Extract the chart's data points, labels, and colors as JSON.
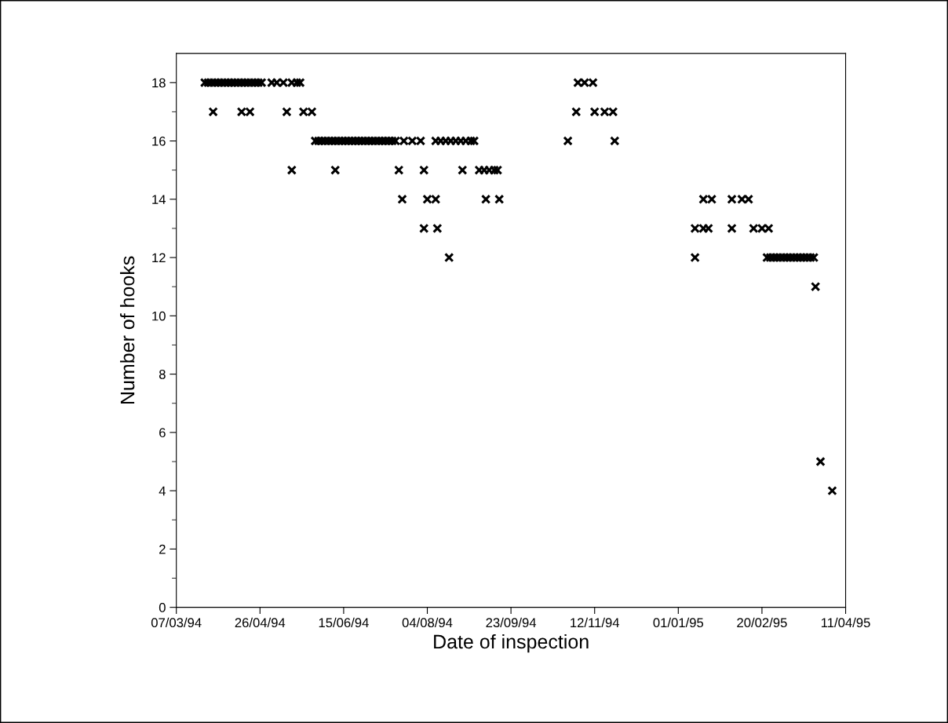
{
  "chart_data": {
    "type": "scatter",
    "xlabel": "Date of inspection",
    "ylabel": "Number of hooks",
    "xlim": [
      "1994-03-07",
      "1995-04-11"
    ],
    "ylim": [
      0,
      19
    ],
    "xticks": [
      {
        "value": "1994-03-07",
        "label": "07/03/94"
      },
      {
        "value": "1994-04-26",
        "label": "26/04/94"
      },
      {
        "value": "1994-06-15",
        "label": "15/06/94"
      },
      {
        "value": "1994-08-04",
        "label": "04/08/94"
      },
      {
        "value": "1994-09-23",
        "label": "23/09/94"
      },
      {
        "value": "1994-11-12",
        "label": "12/11/94"
      },
      {
        "value": "1995-01-01",
        "label": "01/01/95"
      },
      {
        "value": "1995-02-20",
        "label": "20/02/95"
      },
      {
        "value": "1995-04-11",
        "label": "11/04/95"
      }
    ],
    "yticks": [
      0,
      2,
      4,
      6,
      8,
      10,
      12,
      14,
      16,
      18
    ],
    "marker": "cross",
    "grid": false,
    "series": [
      {
        "color": "#000000",
        "x": [
          "1994-03-24",
          "1994-03-26",
          "1994-03-28",
          "1994-03-30",
          "1994-04-01",
          "1994-04-03",
          "1994-04-05",
          "1994-04-07",
          "1994-04-09",
          "1994-04-11",
          "1994-04-13",
          "1994-04-15",
          "1994-04-17",
          "1994-04-19",
          "1994-04-21",
          "1994-04-23",
          "1994-04-25",
          "1994-04-27",
          "1994-05-03",
          "1994-05-06",
          "1994-05-10",
          "1994-05-15",
          "1994-05-18",
          "1994-05-20",
          "1994-03-29",
          "1994-04-15",
          "1994-04-20",
          "1994-05-12",
          "1994-05-22",
          "1994-05-27",
          "1994-05-29",
          "1994-05-31",
          "1994-06-02",
          "1994-06-04",
          "1994-06-06",
          "1994-06-08",
          "1994-06-10",
          "1994-06-12",
          "1994-06-14",
          "1994-06-16",
          "1994-06-18",
          "1994-06-20",
          "1994-06-22",
          "1994-06-24",
          "1994-06-26",
          "1994-06-28",
          "1994-06-30",
          "1994-07-02",
          "1994-07-04",
          "1994-07-06",
          "1994-07-08",
          "1994-07-10",
          "1994-07-12",
          "1994-07-14",
          "1994-07-16",
          "1994-07-21",
          "1994-07-26",
          "1994-07-31",
          "1994-08-09",
          "1994-08-12",
          "1994-08-15",
          "1994-08-18",
          "1994-08-21",
          "1994-08-24",
          "1994-08-27",
          "1994-08-30",
          "1994-09-01",
          "1994-05-15",
          "1994-06-10",
          "1994-07-18",
          "1994-08-02",
          "1994-08-25",
          "1994-09-04",
          "1994-09-07",
          "1994-09-10",
          "1994-09-13",
          "1994-09-15",
          "1994-07-20",
          "1994-08-04",
          "1994-08-09",
          "1994-09-08",
          "1994-09-16",
          "1994-08-02",
          "1994-08-10",
          "1994-08-17",
          "1994-11-02",
          "1994-11-06",
          "1994-11-11",
          "1994-11-01",
          "1994-11-12",
          "1994-11-18",
          "1994-11-23",
          "1994-10-27",
          "1994-11-24",
          "1995-01-16",
          "1995-01-21",
          "1995-02-02",
          "1995-02-08",
          "1995-02-12",
          "1995-01-11",
          "1995-01-16",
          "1995-01-19",
          "1995-02-02",
          "1995-02-15",
          "1995-02-20",
          "1995-02-24",
          "1995-01-11",
          "1995-02-23",
          "1995-02-25",
          "1995-02-27",
          "1995-03-01",
          "1995-03-03",
          "1995-03-05",
          "1995-03-07",
          "1995-03-09",
          "1995-03-11",
          "1995-03-13",
          "1995-03-15",
          "1995-03-17",
          "1995-03-19",
          "1995-03-21",
          "1995-03-23",
          "1995-03-24",
          "1995-03-27",
          "1995-04-03"
        ],
        "values": [
          18,
          18,
          18,
          18,
          18,
          18,
          18,
          18,
          18,
          18,
          18,
          18,
          18,
          18,
          18,
          18,
          18,
          18,
          18,
          18,
          18,
          18,
          18,
          18,
          17,
          17,
          17,
          17,
          17,
          17,
          16,
          16,
          16,
          16,
          16,
          16,
          16,
          16,
          16,
          16,
          16,
          16,
          16,
          16,
          16,
          16,
          16,
          16,
          16,
          16,
          16,
          16,
          16,
          16,
          16,
          16,
          16,
          16,
          16,
          16,
          16,
          16,
          16,
          16,
          16,
          16,
          16,
          15,
          15,
          15,
          15,
          15,
          15,
          15,
          15,
          15,
          15,
          14,
          14,
          14,
          14,
          14,
          13,
          13,
          12,
          18,
          18,
          18,
          17,
          17,
          17,
          17,
          16,
          16,
          14,
          14,
          14,
          14,
          14,
          13,
          13,
          13,
          13,
          13,
          13,
          13,
          12,
          12,
          12,
          12,
          12,
          12,
          12,
          12,
          12,
          12,
          12,
          12,
          12,
          12,
          12,
          12,
          11,
          5,
          4
        ]
      }
    ]
  }
}
